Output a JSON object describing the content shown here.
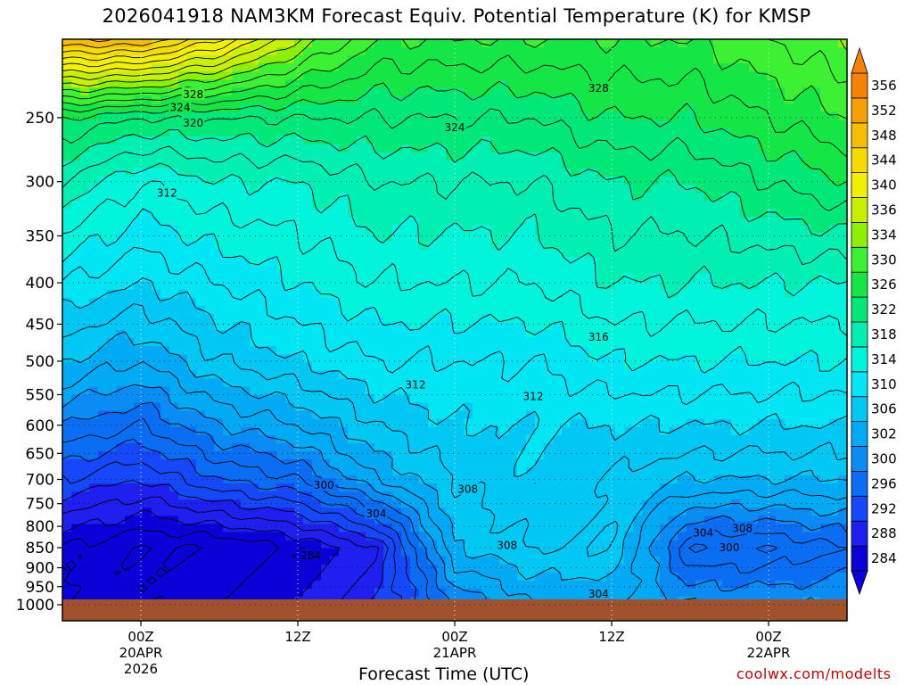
{
  "chart_data": {
    "type": "heatmap",
    "title": "2026041918 NAM3KM Forecast Equiv. Potential Temperature (K) for KMSP",
    "xlabel": "Forecast Time (UTC)",
    "ylabel": "",
    "credit": "coolwx.com/modelts",
    "y_axis": {
      "scale": "log-pressure",
      "inverted": true,
      "ylim": [
        1000,
        200
      ],
      "ticks": [
        1000,
        950,
        900,
        850,
        800,
        750,
        700,
        650,
        600,
        550,
        500,
        450,
        400,
        350,
        300,
        250
      ]
    },
    "x_axis": {
      "xlim_hours": [
        -6,
        54
      ],
      "ticks": [
        {
          "hour": 0,
          "label": "00Z",
          "sub1": "20APR",
          "sub2": "2026"
        },
        {
          "hour": 12,
          "label": "12Z",
          "sub1": "",
          "sub2": ""
        },
        {
          "hour": 24,
          "label": "00Z",
          "sub1": "21APR",
          "sub2": ""
        },
        {
          "hour": 36,
          "label": "12Z",
          "sub1": "",
          "sub2": ""
        },
        {
          "hour": 48,
          "label": "00Z",
          "sub1": "22APR",
          "sub2": ""
        }
      ]
    },
    "grid": true,
    "colorbar": {
      "levels": [
        284,
        288,
        292,
        296,
        300,
        302,
        306,
        310,
        314,
        318,
        322,
        326,
        330,
        334,
        336,
        340,
        344,
        348,
        352,
        356
      ],
      "colors": [
        "#0a00d8",
        "#1f1ff0",
        "#1448f8",
        "#0a6ef5",
        "#0a8cf5",
        "#00aaf5",
        "#00c8f5",
        "#00e6f5",
        "#00f5dc",
        "#00f0b4",
        "#00e878",
        "#14e646",
        "#3cf032",
        "#8cf000",
        "#c8f000",
        "#f0f000",
        "#f5dc00",
        "#f5be00",
        "#f5a000",
        "#f58200"
      ]
    },
    "profiles": [
      {
        "hour": -6,
        "theta_e": {
          "1000": 286,
          "850": 286,
          "700": 294,
          "600": 300,
          "500": 306,
          "400": 312,
          "300": 320,
          "250": 326,
          "200": 350
        }
      },
      {
        "hour": 0,
        "theta_e": {
          "1000": 284,
          "850": 284,
          "700": 292,
          "600": 298,
          "500": 304,
          "400": 310,
          "300": 316,
          "250": 324,
          "200": 350
        }
      },
      {
        "hour": 6,
        "theta_e": {
          "1000": 286,
          "850": 284,
          "700": 296,
          "600": 302,
          "500": 308,
          "400": 312,
          "300": 318,
          "250": 324,
          "200": 344
        }
      },
      {
        "hour": 12,
        "theta_e": {
          "1000": 288,
          "850": 286,
          "700": 298,
          "600": 304,
          "500": 310,
          "400": 314,
          "300": 318,
          "250": 324,
          "200": 336
        }
      },
      {
        "hour": 18,
        "theta_e": {
          "1000": 292,
          "850": 290,
          "700": 304,
          "600": 308,
          "500": 312,
          "400": 316,
          "300": 320,
          "250": 324,
          "200": 330
        }
      },
      {
        "hour": 24,
        "theta_e": {
          "1000": 300,
          "850": 306,
          "700": 308,
          "600": 310,
          "500": 312,
          "400": 316,
          "300": 320,
          "250": 324,
          "200": 330
        }
      },
      {
        "hour": 30,
        "theta_e": {
          "1000": 304,
          "850": 308,
          "700": 310,
          "600": 310,
          "500": 312,
          "400": 316,
          "300": 320,
          "250": 324,
          "200": 330
        }
      },
      {
        "hour": 36,
        "theta_e": {
          "1000": 304,
          "850": 308,
          "700": 308,
          "600": 310,
          "500": 314,
          "400": 318,
          "300": 322,
          "250": 326,
          "200": 330
        }
      },
      {
        "hour": 42,
        "theta_e": {
          "1000": 302,
          "850": 296,
          "700": 306,
          "600": 310,
          "500": 314,
          "400": 318,
          "300": 322,
          "250": 326,
          "200": 330
        }
      },
      {
        "hour": 48,
        "theta_e": {
          "1000": 302,
          "850": 296,
          "700": 306,
          "600": 310,
          "500": 314,
          "400": 318,
          "300": 324,
          "250": 328,
          "200": 332
        }
      },
      {
        "hour": 54,
        "theta_e": {
          "1000": 302,
          "850": 298,
          "700": 306,
          "600": 310,
          "500": 314,
          "400": 318,
          "300": 326,
          "250": 330,
          "200": 334
        }
      }
    ],
    "contour_labels": [
      {
        "text": "328",
        "hour": 4,
        "p": 234
      },
      {
        "text": "324",
        "hour": 3,
        "p": 243
      },
      {
        "text": "320",
        "hour": 4,
        "p": 254
      },
      {
        "text": "312",
        "hour": 2,
        "p": 310
      },
      {
        "text": "328",
        "hour": 35,
        "p": 230
      },
      {
        "hour": 24,
        "p": 257,
        "text": "324"
      },
      {
        "text": "316",
        "hour": 35,
        "p": 467
      },
      {
        "text": "312",
        "hour": 21,
        "p": 535
      },
      {
        "text": "312",
        "hour": 30,
        "p": 553
      },
      {
        "text": "300",
        "hour": 14,
        "p": 712
      },
      {
        "text": "304",
        "hour": 18,
        "p": 772
      },
      {
        "text": "308",
        "hour": 25,
        "p": 720
      },
      {
        "text": "308",
        "hour": 28,
        "p": 845
      },
      {
        "text": "284",
        "hour": 13,
        "p": 870
      },
      {
        "text": "304",
        "hour": 43,
        "p": 815
      },
      {
        "text": "308",
        "hour": 46,
        "p": 805
      },
      {
        "text": "300",
        "hour": 45,
        "p": 850
      },
      {
        "text": "304",
        "hour": 35,
        "p": 970
      }
    ]
  }
}
